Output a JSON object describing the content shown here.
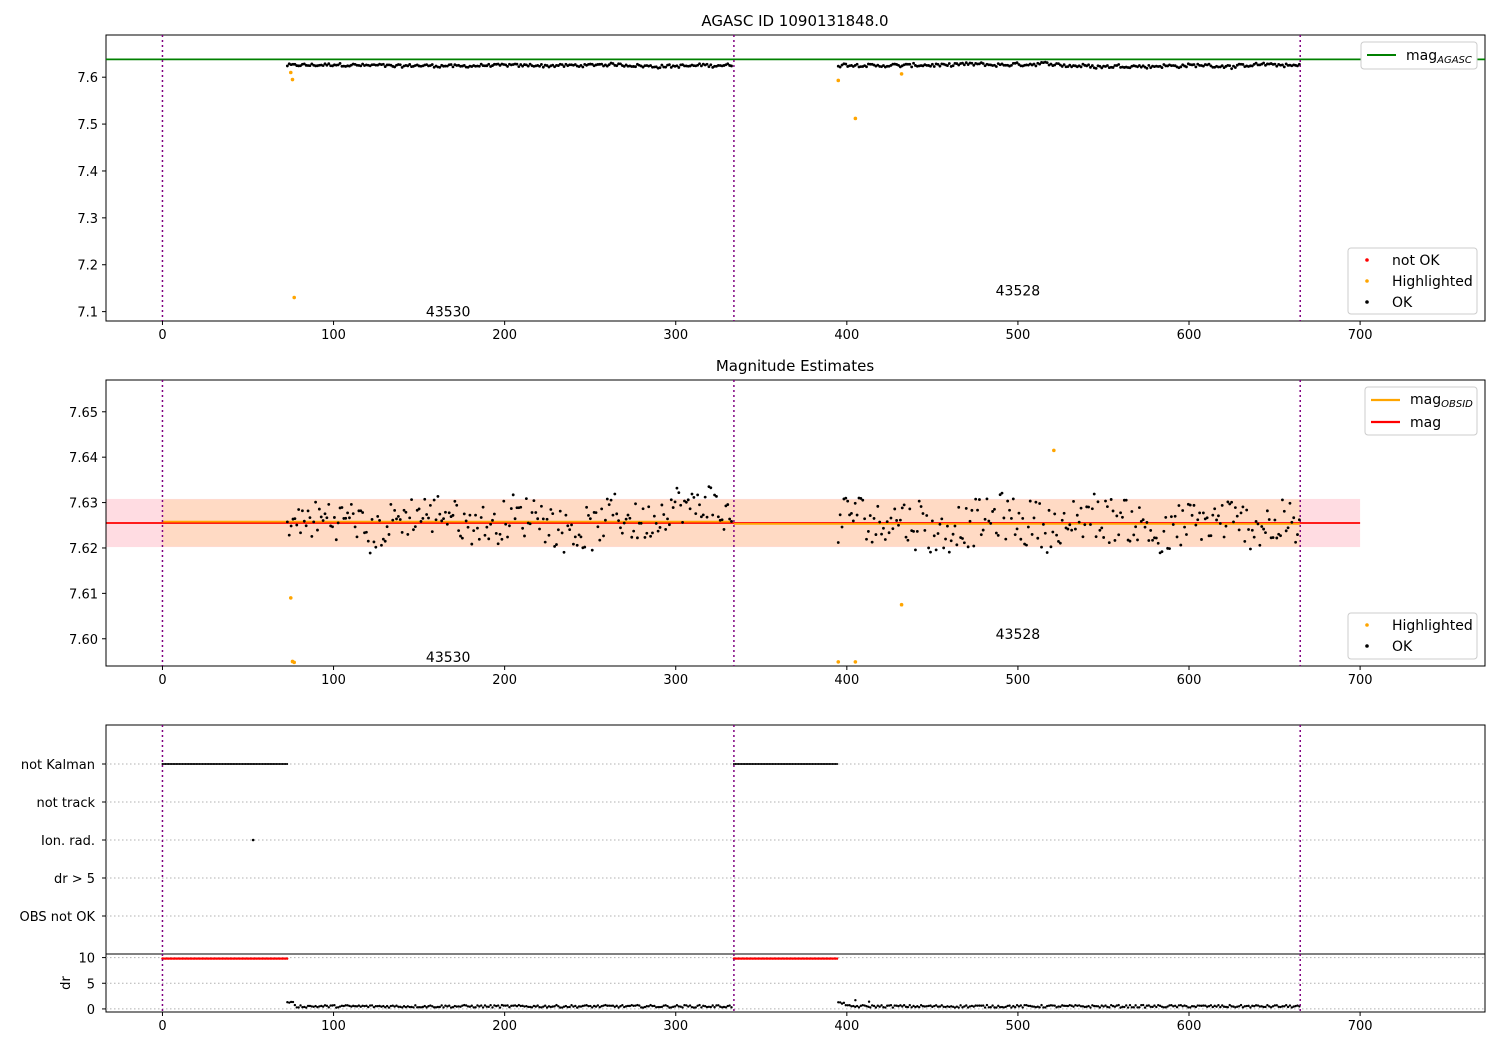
{
  "figure": {
    "title_top": "AGASC ID 1090131848.0",
    "title_mid": "Magnitude Estimates"
  },
  "colors": {
    "ok": "#000000",
    "highlighted": "#ffa500",
    "not_ok": "#ff0000",
    "mag_agasc": "#008000",
    "mag_obsid": "#ffa500",
    "mag": "#ff0000",
    "band_obsid": "#ffdab9",
    "band_mag": "#ffc0cb",
    "obs_boundary": "#800080"
  },
  "chart_data": [
    {
      "type": "scatter",
      "title": "AGASC ID 1090131848.0",
      "xlim": [
        -33,
        773
      ],
      "ylim": [
        7.08,
        7.69
      ],
      "xticks": [
        0,
        100,
        200,
        300,
        400,
        500,
        600,
        700
      ],
      "yticks": [
        7.1,
        7.2,
        7.3,
        7.4,
        7.5,
        7.6
      ],
      "ytick_labels": [
        "7.1",
        "7.2",
        "7.3",
        "7.4",
        "7.5",
        "7.6"
      ],
      "mag_agasc": 7.638,
      "obs_boundaries": [
        0,
        334,
        665
      ],
      "obsids": [
        {
          "label": "43530",
          "x": 167,
          "y": 7.1
        },
        {
          "label": "43528",
          "x": 500,
          "y": 7.145
        }
      ],
      "highlighted": [
        [
          75,
          7.61
        ],
        [
          76,
          7.595
        ],
        [
          77,
          7.13
        ],
        [
          395,
          7.593
        ],
        [
          405,
          7.512
        ],
        [
          432,
          7.607
        ]
      ],
      "ok_segments": [
        {
          "x0": 73,
          "x1": 333,
          "mean": 7.625,
          "amp": 0.006
        },
        {
          "x0": 395,
          "x1": 665,
          "mean": 7.625,
          "amp": 0.007
        }
      ],
      "legend_lines": [
        "mag",
        "AGASC"
      ],
      "legend_points": [
        "not OK",
        "Highlighted",
        "OK"
      ]
    },
    {
      "type": "scatter",
      "title": "Magnitude Estimates",
      "xlim": [
        -33,
        773
      ],
      "ylim": [
        7.594,
        7.657
      ],
      "xticks": [
        0,
        100,
        200,
        300,
        400,
        500,
        600,
        700
      ],
      "yticks": [
        7.6,
        7.61,
        7.62,
        7.63,
        7.64,
        7.65
      ],
      "ytick_labels": [
        "7.60",
        "7.61",
        "7.62",
        "7.63",
        "7.64",
        "7.65"
      ],
      "mag": 7.6255,
      "mag_band": [
        7.6202,
        7.6308
      ],
      "mag_obsid": [
        {
          "x0": 0,
          "x1": 334,
          "y": 7.6258
        },
        {
          "x0": 334,
          "x1": 665,
          "y": 7.6253
        }
      ],
      "obsid_band": [
        7.6203,
        7.6307
      ],
      "obs_boundaries": [
        0,
        334,
        665
      ],
      "obsids": [
        {
          "label": "43530",
          "x": 167,
          "y": 7.596
        },
        {
          "label": "43528",
          "x": 500,
          "y": 7.601
        }
      ],
      "highlighted": [
        [
          75,
          7.609
        ],
        [
          76,
          7.595
        ],
        [
          77,
          7.5948
        ],
        [
          395,
          7.5949
        ],
        [
          405,
          7.5949
        ],
        [
          432,
          7.6075
        ],
        [
          521,
          7.6415
        ]
      ],
      "ok_segments": [
        {
          "x0": 73,
          "x1": 333,
          "mean": 7.626,
          "amp": 0.0065
        },
        {
          "x0": 395,
          "x1": 665,
          "mean": 7.6255,
          "amp": 0.0075
        }
      ],
      "legend_lines": [
        "mag",
        "OBSID",
        "mag"
      ],
      "legend_points": [
        "Highlighted",
        "OK"
      ]
    },
    {
      "type": "scatter",
      "title": "",
      "xlim": [
        -33,
        773
      ],
      "flag_rows": [
        "not Kalman",
        "not track",
        "Ion. rad.",
        "dr > 5",
        "OBS not OK"
      ],
      "not_kalman_ranges": [
        [
          0,
          73
        ],
        [
          334,
          395
        ]
      ],
      "ion_rad_points": [
        53
      ],
      "ylabel": "dr",
      "yticks": [
        0,
        5,
        10
      ],
      "ytick_labels": [
        "0",
        "5",
        "10"
      ],
      "xticks": [
        0,
        100,
        200,
        300,
        400,
        500,
        600,
        700
      ],
      "dr_red_ranges": [
        [
          0,
          73
        ],
        [
          334,
          395
        ]
      ],
      "dr_red_value": 9.8,
      "dr_black_segments": [
        [
          73,
          333
        ],
        [
          395,
          665
        ]
      ],
      "obs_boundaries": [
        0,
        334,
        665
      ]
    }
  ]
}
